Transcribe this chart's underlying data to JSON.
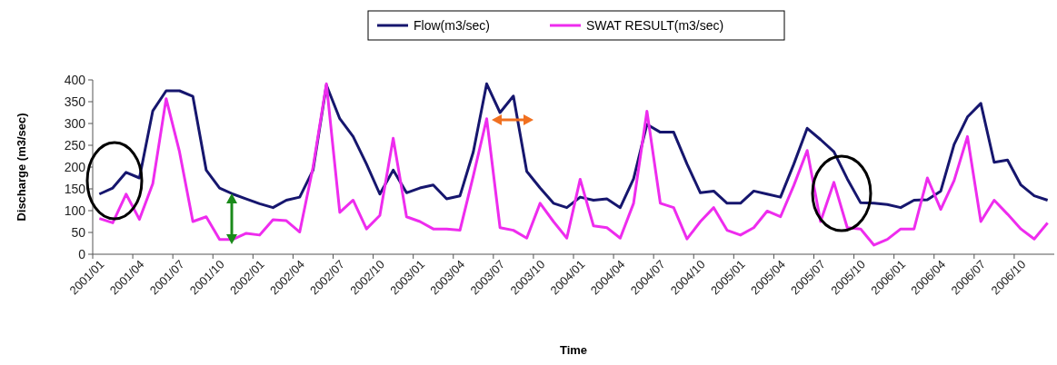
{
  "chart_data": {
    "type": "line",
    "xlabel": "Time",
    "ylabel": "Discharge (m3/sec)",
    "categories": [
      "2001/01",
      null,
      null,
      "2001/04",
      null,
      null,
      "2001/07",
      null,
      null,
      "2001/10",
      null,
      null,
      "2002/01",
      null,
      null,
      "2002/04",
      null,
      null,
      "2002/07",
      null,
      null,
      "2002/10",
      null,
      null,
      "2003/01",
      null,
      null,
      "2003/04",
      null,
      null,
      "2003/07",
      null,
      null,
      "2003/10",
      null,
      null,
      "2004/01",
      null,
      null,
      "2004/04",
      null,
      null,
      "2004/07",
      null,
      null,
      "2004/10",
      null,
      null,
      "2005/01",
      null,
      null,
      "2005/04",
      null,
      null,
      "2005/07",
      null,
      null,
      "2005/10",
      null,
      null,
      "2006/01",
      null,
      null,
      "2006/04",
      null,
      null,
      "2006/07",
      null,
      null,
      "2006/10",
      null,
      null
    ],
    "series": [
      {
        "name": "Flow(m3/sec)",
        "color": "#16166e",
        "values": [
          138,
          152,
          188,
          175,
          329,
          375,
          375,
          362,
          193,
          152,
          138,
          127,
          116,
          107,
          124,
          131,
          193,
          388,
          311,
          270,
          207,
          138,
          193,
          141,
          152,
          159,
          127,
          134,
          235,
          391,
          325,
          363,
          190,
          152,
          117,
          107,
          131,
          124,
          127,
          107,
          173,
          298,
          280,
          280,
          207,
          141,
          145,
          117,
          117,
          145,
          138,
          131,
          207,
          289,
          263,
          235,
          173,
          118,
          117,
          114,
          107,
          124,
          125,
          145,
          252,
          315,
          346,
          211,
          216,
          159,
          134,
          124
        ]
      },
      {
        "name": "SWAT RESULT(m3/sec)",
        "color": "#ee2cee",
        "values": [
          82,
          72,
          138,
          80,
          162,
          357,
          235,
          75,
          86,
          34,
          34,
          48,
          44,
          79,
          77,
          51,
          200,
          391,
          96,
          124,
          58,
          89,
          266,
          86,
          75,
          58,
          58,
          55,
          180,
          311,
          61,
          55,
          37,
          117,
          75,
          37,
          172,
          65,
          61,
          37,
          117,
          328,
          117,
          107,
          35,
          75,
          107,
          55,
          44,
          61,
          99,
          86,
          158,
          238,
          75,
          165,
          61,
          58,
          21,
          34,
          58,
          58,
          175,
          103,
          169,
          270,
          75,
          124,
          92,
          58,
          35,
          72
        ]
      }
    ],
    "ylim": [
      0,
      400
    ],
    "yticks": [
      0,
      50,
      100,
      150,
      200,
      250,
      300,
      350,
      400
    ],
    "grid": false,
    "legend": "top",
    "marker": "none",
    "line_style": "solid"
  }
}
